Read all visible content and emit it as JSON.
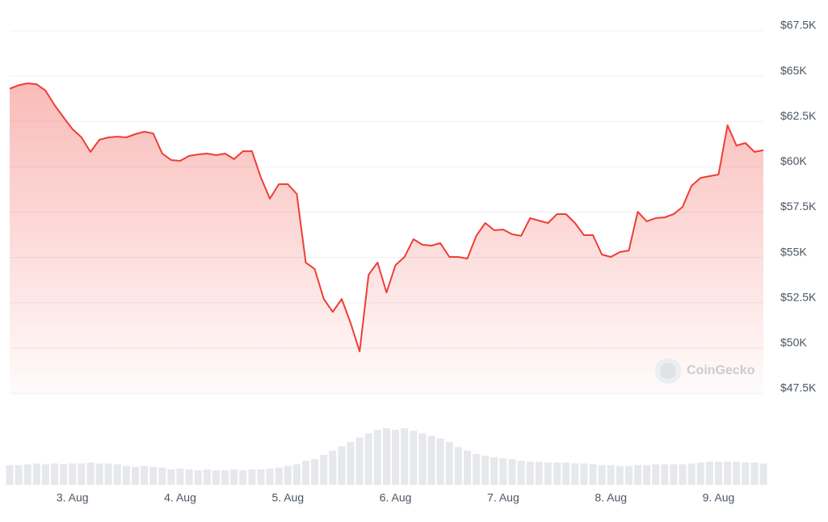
{
  "chart_data": {
    "type": "line",
    "watermark": "CoinGecko",
    "color": "#ef3e36",
    "categories": [
      null,
      null,
      null,
      null,
      null,
      null,
      null,
      "3. Aug",
      null,
      null,
      null,
      null,
      null,
      null,
      null,
      null,
      null,
      null,
      null,
      "4. Aug",
      null,
      null,
      null,
      null,
      null,
      null,
      null,
      null,
      null,
      null,
      null,
      "5. Aug",
      null,
      null,
      null,
      null,
      null,
      null,
      null,
      null,
      null,
      null,
      null,
      "6. Aug",
      null,
      null,
      null,
      null,
      null,
      null,
      null,
      null,
      null,
      null,
      null,
      "7. Aug",
      null,
      null,
      null,
      null,
      null,
      null,
      null,
      null,
      null,
      null,
      null,
      "8. Aug",
      null,
      null,
      null,
      null,
      null,
      null,
      null,
      null,
      null,
      null,
      null,
      "9. Aug",
      null,
      null,
      null,
      null,
      null
    ],
    "values": [
      64300,
      64500,
      64600,
      64550,
      64200,
      63400,
      62730,
      62070,
      61620,
      60820,
      61490,
      61620,
      61660,
      61620,
      61800,
      61930,
      61840,
      60730,
      60370,
      60330,
      60600,
      60680,
      60730,
      60640,
      60730,
      60420,
      60860,
      60860,
      59400,
      58240,
      59040,
      59040,
      58500,
      54720,
      54360,
      52710,
      52000,
      52710,
      51380,
      49820,
      54050,
      54720,
      53070,
      54580,
      55030,
      56010,
      55700,
      55650,
      55790,
      55030,
      55030,
      54940,
      56190,
      56900,
      56500,
      56540,
      56280,
      56190,
      57170,
      57030,
      56900,
      57390,
      57390,
      56900,
      56230,
      56230,
      55160,
      55030,
      55300,
      55380,
      57520,
      56990,
      57170,
      57210,
      57390,
      57790,
      58950,
      59390,
      59480,
      59570,
      62290,
      61170,
      61310,
      60820,
      60910
    ],
    "volume": [
      23,
      23,
      24,
      25,
      24,
      25,
      24,
      25,
      25,
      26,
      25,
      25,
      24,
      22,
      21,
      22,
      21,
      20,
      18,
      19,
      18,
      17,
      18,
      17,
      17,
      18,
      17,
      18,
      18,
      19,
      20,
      22,
      24,
      28,
      30,
      35,
      40,
      45,
      50,
      55,
      60,
      64,
      66,
      64,
      66,
      63,
      60,
      57,
      54,
      50,
      44,
      40,
      36,
      34,
      32,
      31,
      30,
      28,
      27,
      27,
      26,
      26,
      26,
      25,
      25,
      24,
      23,
      23,
      22,
      22,
      23,
      23,
      24,
      24,
      24,
      24,
      25,
      26,
      27,
      27,
      27,
      27,
      26,
      26,
      25
    ],
    "ylim": [
      47500,
      67500
    ],
    "yticks": [
      {
        "value": 47500,
        "label": "$47.5K"
      },
      {
        "value": 50000,
        "label": "$50K"
      },
      {
        "value": 52500,
        "label": "$52.5K"
      },
      {
        "value": 55000,
        "label": "$55K"
      },
      {
        "value": 57500,
        "label": "$57.5K"
      },
      {
        "value": 60000,
        "label": "$60K"
      },
      {
        "value": 62500,
        "label": "$62.5K"
      },
      {
        "value": 65000,
        "label": "$65K"
      },
      {
        "value": 67500,
        "label": "$67.5K"
      }
    ],
    "grid": true
  }
}
